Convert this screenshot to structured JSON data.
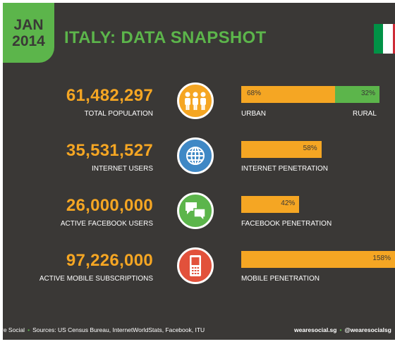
{
  "badge": {
    "month": "JAN",
    "year": "2014"
  },
  "title": "ITALY: DATA SNAPSHOT",
  "colors": {
    "accent_green": "#5cb54b",
    "accent_orange": "#f5a623",
    "background": "#3a3836",
    "flag_green": "#009246",
    "flag_white": "#ffffff",
    "flag_red": "#ce2b37"
  },
  "rows": [
    {
      "number": "61,482,297",
      "label": "TOTAL POPULATION",
      "icon": "people-icon",
      "icon_color": "#f5a623"
    },
    {
      "number": "35,531,527",
      "label": "INTERNET USERS",
      "icon": "globe-icon",
      "icon_color": "#3f88c5"
    },
    {
      "number": "26,000,000",
      "label": "ACTIVE FACEBOOK USERS",
      "icon": "chat-bubbles-icon",
      "icon_color": "#5cb54b"
    },
    {
      "number": "97,226,000",
      "label": "ACTIVE MOBILE SUBSCRIPTIONS",
      "icon": "mobile-phone-icon",
      "icon_color": "#e2513b"
    }
  ],
  "bars": {
    "urban_rural": {
      "urban_value": "68%",
      "rural_value": "32%",
      "urban_fraction": 0.68,
      "rural_fraction": 0.32,
      "urban_label": "URBAN",
      "rural_label": "RURAL"
    },
    "internet": {
      "value": "58%",
      "fraction": 0.58,
      "label": "INTERNET PENETRATION"
    },
    "facebook": {
      "value": "42%",
      "fraction": 0.42,
      "label": "FACEBOOK PENETRATION"
    },
    "mobile": {
      "value": "158%",
      "fraction": 1.58,
      "label": "MOBILE PENETRATION"
    }
  },
  "footer": {
    "brand": "re Social",
    "sources": "Sources: US Census Bureau, InternetWorldStats, Facebook, ITU",
    "site": "wearesocial.sg",
    "handle": "@wearesocialsg"
  }
}
